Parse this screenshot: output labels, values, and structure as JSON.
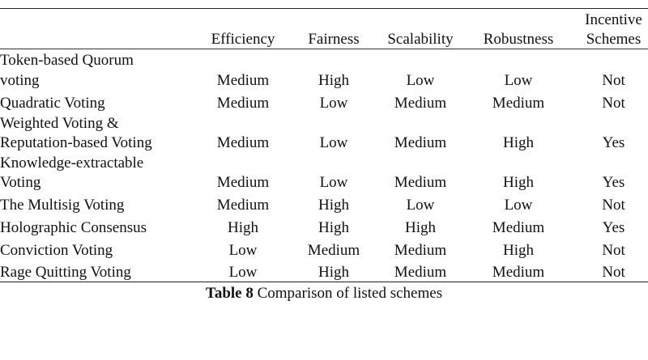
{
  "table": {
    "headers": {
      "efficiency": "Efficiency",
      "fairness": "Fairness",
      "scalability": "Scalability",
      "robustness": "Robustness",
      "incentive_line1": "Incentive",
      "incentive_line2": "Schemes"
    },
    "rows": [
      {
        "name_line1": "Token-based Quorum",
        "name_line2": "voting",
        "efficiency": "Medium",
        "fairness": "High",
        "scalability": "Low",
        "robustness": "Low",
        "incentive": "Not"
      },
      {
        "name_line1": "Quadratic Voting",
        "name_line2": "",
        "efficiency": "Medium",
        "fairness": "Low",
        "scalability": "Medium",
        "robustness": "Medium",
        "incentive": "Not"
      },
      {
        "name_line1": "Weighted Voting &",
        "name_line2": "Reputation-based Voting",
        "efficiency": "Medium",
        "fairness": "Low",
        "scalability": "Medium",
        "robustness": "High",
        "incentive": "Yes"
      },
      {
        "name_line1": "Knowledge-extractable",
        "name_line2": "Voting",
        "efficiency": "Medium",
        "fairness": "Low",
        "scalability": "Medium",
        "robustness": "High",
        "incentive": "Yes"
      },
      {
        "name_line1": "The Multisig Voting",
        "name_line2": "",
        "efficiency": "Medium",
        "fairness": "High",
        "scalability": "Low",
        "robustness": "Low",
        "incentive": "Not"
      },
      {
        "name_line1": "Holographic Consensus",
        "name_line2": "",
        "efficiency": "High",
        "fairness": "High",
        "scalability": "High",
        "robustness": "Medium",
        "incentive": "Yes"
      },
      {
        "name_line1": "Conviction Voting",
        "name_line2": "",
        "efficiency": "Low",
        "fairness": "Medium",
        "scalability": "Medium",
        "robustness": "High",
        "incentive": "Not"
      },
      {
        "name_line1": "Rage Quitting Voting",
        "name_line2": "",
        "efficiency": "Low",
        "fairness": "High",
        "scalability": "Medium",
        "robustness": "Medium",
        "incentive": "Not"
      }
    ]
  },
  "caption": {
    "label": "Table 8",
    "text": " Comparison of listed schemes"
  }
}
